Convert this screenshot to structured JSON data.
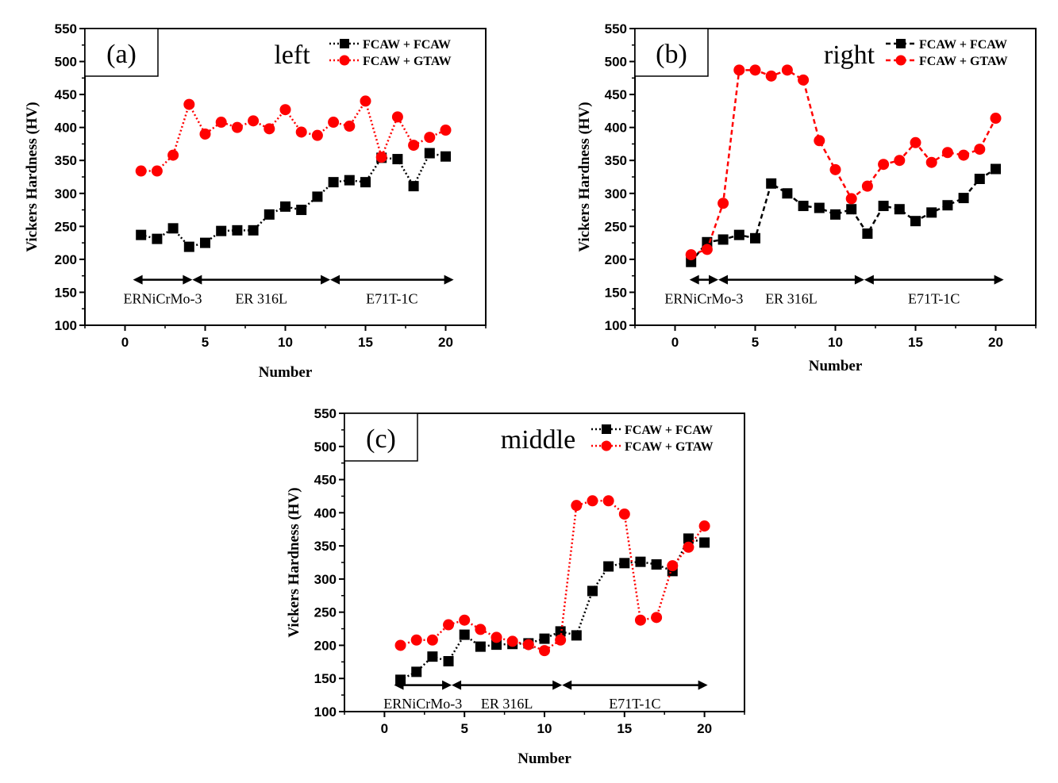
{
  "chart_data": [
    {
      "type": "line",
      "panel": "(a)",
      "position_label": "left",
      "xlabel": "Number",
      "ylabel": "Vickers Hardness (HV)",
      "xlim": [
        -2.5,
        22.5
      ],
      "ylim": [
        100,
        550
      ],
      "xticks": [
        "0",
        "5",
        "10",
        "15",
        "20"
      ],
      "yticks": [
        "100",
        "150",
        "200",
        "250",
        "300",
        "350",
        "400",
        "450",
        "500",
        "550"
      ],
      "line_style": "dotted",
      "legend_position": "top-right",
      "x": [
        1,
        2,
        3,
        4,
        5,
        6,
        7,
        8,
        9,
        10,
        11,
        12,
        13,
        14,
        15,
        16,
        17,
        18,
        19,
        20
      ],
      "series": [
        {
          "name": "FCAW + FCAW",
          "color": "#000000",
          "marker": "square",
          "values": [
            237,
            231,
            247,
            219,
            225,
            243,
            244,
            244,
            268,
            280,
            275,
            295,
            317,
            320,
            317,
            354,
            352,
            311,
            361,
            356
          ]
        },
        {
          "name": "FCAW + GTAW",
          "color": "#ff0000",
          "marker": "circle",
          "values": [
            334,
            334,
            358,
            435,
            390,
            408,
            400,
            410,
            398,
            427,
            393,
            388,
            408,
            402,
            440,
            355,
            416,
            373,
            385,
            396
          ]
        }
      ],
      "regions": [
        {
          "label": "ERNiCrMo-3",
          "from": 0.5,
          "to": 4.2
        },
        {
          "label": "ER 316L",
          "from": 4.2,
          "to": 12.8
        },
        {
          "label": "E71T-1C",
          "from": 12.8,
          "to": 20.5
        }
      ]
    },
    {
      "type": "line",
      "panel": "(b)",
      "position_label": "right",
      "xlabel": "Number",
      "ylabel": "Vickers Hardness (HV)",
      "xlim": [
        -2.5,
        22.5
      ],
      "ylim": [
        100,
        550
      ],
      "xticks": [
        "0",
        "5",
        "10",
        "15",
        "20"
      ],
      "yticks": [
        "100",
        "150",
        "200",
        "250",
        "300",
        "350",
        "400",
        "450",
        "500",
        "550"
      ],
      "line_style": "dashed",
      "legend_position": "top-right",
      "x": [
        1,
        2,
        3,
        4,
        5,
        6,
        7,
        8,
        9,
        10,
        11,
        12,
        13,
        14,
        15,
        16,
        17,
        18,
        19,
        20
      ],
      "series": [
        {
          "name": "FCAW + FCAW",
          "color": "#000000",
          "marker": "square",
          "values": [
            196,
            226,
            230,
            237,
            232,
            315,
            300,
            281,
            278,
            268,
            276,
            239,
            281,
            276,
            258,
            271,
            282,
            293,
            322,
            337
          ]
        },
        {
          "name": "FCAW + GTAW",
          "color": "#ff0000",
          "marker": "circle",
          "values": [
            207,
            215,
            285,
            487,
            487,
            478,
            487,
            472,
            380,
            336,
            292,
            311,
            344,
            350,
            377,
            347,
            362,
            358,
            367,
            414
          ]
        }
      ],
      "regions": [
        {
          "label": "ERNiCrMo-3",
          "from": 0.9,
          "to": 2.7
        },
        {
          "label": "ER 316L",
          "from": 2.7,
          "to": 11.8
        },
        {
          "label": "E71T-1C",
          "from": 11.8,
          "to": 20.5
        }
      ]
    },
    {
      "type": "line",
      "panel": "(c)",
      "position_label": "middle",
      "xlabel": "Number",
      "ylabel": "Vickers Hardness (HV)",
      "xlim": [
        -2.5,
        22.5
      ],
      "ylim": [
        100,
        550
      ],
      "xticks": [
        "0",
        "5",
        "10",
        "15",
        "20"
      ],
      "yticks": [
        "100",
        "150",
        "200",
        "250",
        "300",
        "350",
        "400",
        "450",
        "500",
        "550"
      ],
      "line_style": "dotted",
      "legend_position": "top-right",
      "x": [
        1,
        2,
        3,
        4,
        5,
        6,
        7,
        8,
        9,
        10,
        11,
        12,
        13,
        14,
        15,
        16,
        17,
        18,
        19,
        20
      ],
      "series": [
        {
          "name": "FCAW + FCAW",
          "color": "#000000",
          "marker": "square",
          "values": [
            148,
            160,
            183,
            176,
            216,
            198,
            201,
            202,
            203,
            210,
            221,
            215,
            282,
            319,
            324,
            326,
            322,
            312,
            361,
            355
          ]
        },
        {
          "name": "FCAW + GTAW",
          "color": "#ff0000",
          "marker": "circle",
          "values": [
            200,
            208,
            208,
            231,
            238,
            224,
            212,
            206,
            201,
            192,
            208,
            411,
            418,
            418,
            398,
            238,
            242,
            320,
            348,
            380
          ]
        }
      ],
      "regions": [
        {
          "label": "ERNiCrMo-3",
          "from": 0.6,
          "to": 4.2
        },
        {
          "label": "ER 316L",
          "from": 4.2,
          "to": 11.1
        },
        {
          "label": "E71T-1C",
          "from": 11.1,
          "to": 20.2
        }
      ]
    }
  ]
}
